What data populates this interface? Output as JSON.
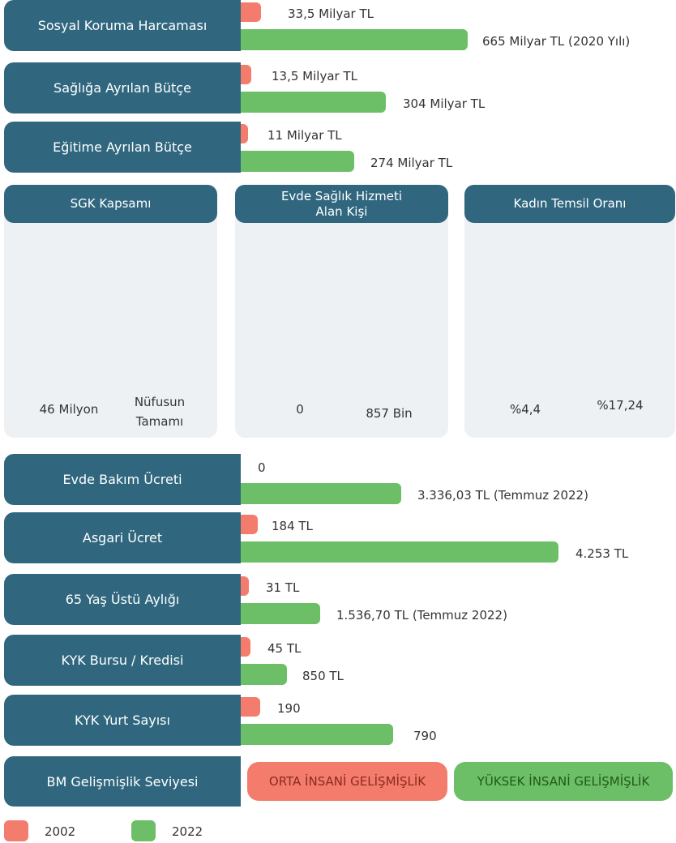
{
  "rows_top": [
    {
      "label": "Sosyal Koruma Harcaması",
      "values": [
        "33,5 Milyar TL",
        "665 Milyar TL (2020 Yılı)"
      ]
    },
    {
      "label": "Sağlığa Ayrılan Bütçe",
      "values": [
        "13,5 Milyar TL",
        "304 Milyar TL"
      ]
    },
    {
      "label": "Eğitime Ayrılan Bütçe",
      "values": [
        "11 Milyar TL",
        "274 Milyar TL"
      ]
    }
  ],
  "panels": [
    {
      "title": "SGK Kapsamı",
      "values": [
        "46 Milyon",
        "Nüfusun Tamamı"
      ]
    },
    {
      "title": "Evde Sağlık Hizmeti Alan Kişi",
      "values": [
        "0",
        "857 Bin"
      ]
    },
    {
      "title": "Kadın Temsil Oranı",
      "values": [
        "%4,4",
        "%17,24"
      ]
    }
  ],
  "rows_bottom": [
    {
      "label": "Evde Bakım Ücreti",
      "values": [
        "0",
        "3.336,03 TL (Temmuz 2022)"
      ]
    },
    {
      "label": "Asgari Ücret",
      "values": [
        "184 TL",
        "4.253 TL"
      ]
    },
    {
      "label": "65 Yaş Üstü Aylığı",
      "values": [
        "31 TL",
        "1.536,70 TL (Temmuz 2022)"
      ]
    },
    {
      "label": "KYK Bursu / Kredisi",
      "values": [
        "45 TL",
        "850 TL"
      ]
    },
    {
      "label": "KYK Yurt Sayısı",
      "values": [
        "190",
        "790"
      ]
    }
  ],
  "development": {
    "label": "BM Gelişmişlik Seviyesi",
    "values": [
      "ORTA İNSANİ GELİŞMİŞLİK",
      "YÜKSEK İNSANİ GELİŞMİŞLİK"
    ]
  },
  "legend": [
    "2002",
    "2022"
  ]
}
